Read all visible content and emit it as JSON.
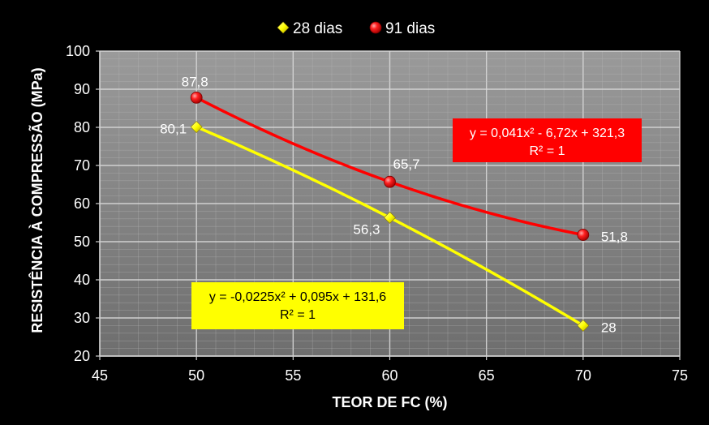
{
  "chart_data": {
    "type": "line",
    "xlabel": "TEOR DE FC (%)",
    "ylabel": "RESISTÊNCIA À COMPRESSÃO (MPa)",
    "xlim": [
      45,
      75
    ],
    "ylim": [
      20,
      100
    ],
    "xticks": [
      "45",
      "50",
      "55",
      "60",
      "65",
      "70",
      "75"
    ],
    "yticks": [
      "20",
      "30",
      "40",
      "50",
      "60",
      "70",
      "80",
      "90",
      "100"
    ],
    "grid": true,
    "legend_position": "top-center",
    "x": [
      50,
      60,
      70
    ],
    "series": [
      {
        "name": "28 dias",
        "color": "#ffff00",
        "marker": "diamond",
        "values": [
          80.1,
          56.3,
          28
        ],
        "labels": [
          "80,1",
          "56,3",
          "28"
        ],
        "trendline": {
          "equation": "y = -0,0225x² + 0,095x + 131,6",
          "r2": "R² = 1",
          "box_color": "#ffff00",
          "text_color": "#000000"
        }
      },
      {
        "name": "91 dias",
        "color": "#ff0000",
        "marker": "circle",
        "values": [
          87.8,
          65.7,
          51.8
        ],
        "labels": [
          "87,8",
          "65,7",
          "51,8"
        ],
        "trendline": {
          "equation": "y = 0,041x² - 6,72x + 321,3",
          "r2": "R² = 1",
          "box_color": "#ff0000",
          "text_color": "#ffffff"
        }
      }
    ]
  }
}
